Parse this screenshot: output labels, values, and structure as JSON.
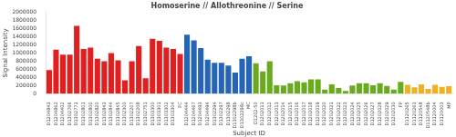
{
  "chart_data": {
    "type": "bar",
    "title": "Homoserine // Allothreonine // Serine",
    "xlabel": "Subject ID",
    "ylabel": "Signal Intensity",
    "categories": [
      "D1204843",
      "D1204862",
      "D1204402",
      "D1302766",
      "D1302771",
      "D1302801",
      "D1302800",
      "D1302820",
      "D1302843",
      "D1302844",
      "D1302845",
      "D1302300",
      "D1302207",
      "D1302208",
      "D1302751",
      "D1303300",
      "D1303301",
      "D1303302",
      "D1303304",
      "FC",
      "D1204444",
      "D1204467",
      "D1204493",
      "D1204494",
      "D1302294",
      "D1302297",
      "D1302298",
      "D1302298b",
      "D1302298c",
      "MC",
      "D1202-50",
      "D1202011",
      "D1202012",
      "D1202013",
      "D1202014",
      "D1202015",
      "D1202016",
      "D1202017",
      "D1202018",
      "D1202019",
      "D1202020",
      "D1202021",
      "D1202022",
      "D1202023",
      "D1202024",
      "D1202025",
      "D1202026",
      "D1202027",
      "D1202028",
      "D1202029",
      "D1202030",
      "FP",
      "D1120265",
      "D1120263",
      "D1120548",
      "D1120548b",
      "D1120004",
      "D1120003",
      "MP"
    ],
    "values": [
      580000,
      1080000,
      960000,
      960000,
      1670000,
      1100000,
      1130000,
      860000,
      800000,
      1000000,
      820000,
      330000,
      800000,
      1170000,
      380000,
      1350000,
      1300000,
      1130000,
      1100000,
      974736.8421052631,
      1450000,
      1310000,
      1120000,
      840000,
      760000,
      760000,
      690000,
      520000,
      860000,
      923333.3333333334,
      750000,
      550000,
      800000,
      210000,
      200000,
      260000,
      310000,
      280000,
      350000,
      350000,
      100000,
      230000,
      140000,
      70000,
      200000,
      260000,
      260000,
      210000,
      260000,
      190000,
      100000,
      289523.8095238095,
      220000,
      160000,
      230000,
      120000,
      220000,
      170000,
      186666.66666666666
    ],
    "colors": [
      "#e02020",
      "#e02020",
      "#e02020",
      "#e02020",
      "#e02020",
      "#e02020",
      "#e02020",
      "#e02020",
      "#e02020",
      "#e02020",
      "#e02020",
      "#e02020",
      "#e02020",
      "#e02020",
      "#e02020",
      "#e02020",
      "#e02020",
      "#e02020",
      "#e02020",
      "#e02020",
      "#2565b5",
      "#2565b5",
      "#2565b5",
      "#2565b5",
      "#2565b5",
      "#2565b5",
      "#2565b5",
      "#2565b5",
      "#2565b5",
      "#2565b5",
      "#6aaa1e",
      "#6aaa1e",
      "#6aaa1e",
      "#6aaa1e",
      "#6aaa1e",
      "#6aaa1e",
      "#6aaa1e",
      "#6aaa1e",
      "#6aaa1e",
      "#6aaa1e",
      "#6aaa1e",
      "#6aaa1e",
      "#6aaa1e",
      "#6aaa1e",
      "#6aaa1e",
      "#6aaa1e",
      "#6aaa1e",
      "#6aaa1e",
      "#6aaa1e",
      "#6aaa1e",
      "#6aaa1e",
      "#6aaa1e",
      "#f0b020",
      "#f0b020",
      "#f0b020",
      "#f0b020",
      "#f0b020",
      "#f0b020",
      "#f0b020"
    ],
    "ylim": [
      0,
      2000000
    ],
    "yticks": [
      0,
      200000,
      400000,
      600000,
      800000,
      1000000,
      1200000,
      1400000,
      1600000,
      1800000,
      2000000
    ],
    "grid": false
  }
}
